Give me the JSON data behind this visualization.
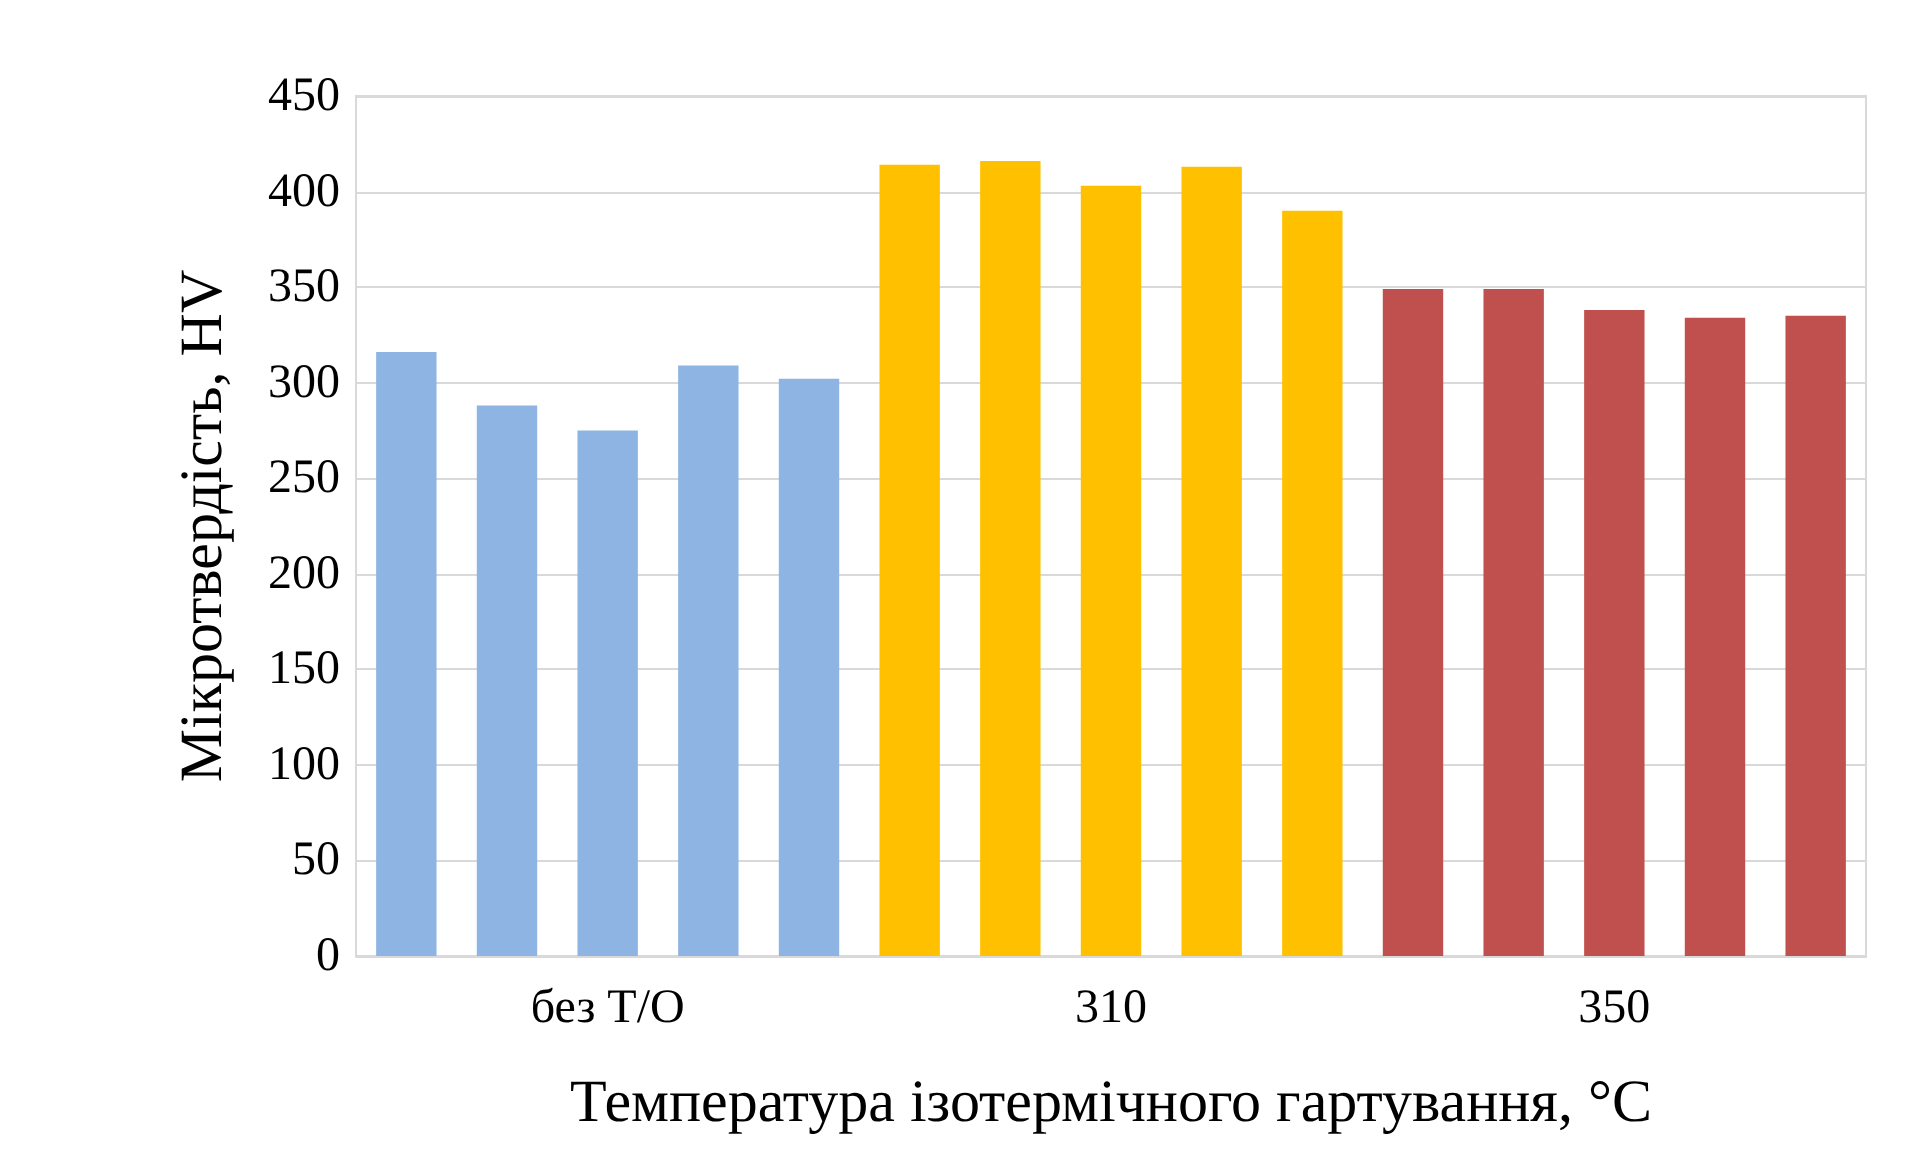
{
  "chart_data": {
    "type": "bar",
    "xlabel": "Температура ізотермічного гартування, °C",
    "ylabel": "Мікротвердість, HV",
    "categories": [
      null,
      null,
      "без Т/О",
      null,
      null,
      null,
      null,
      "310",
      null,
      null,
      null,
      null,
      "350",
      null,
      null
    ],
    "values": [
      316,
      288,
      275,
      309,
      302,
      414,
      416,
      403,
      413,
      390,
      349,
      349,
      338,
      334,
      335
    ],
    "colors": [
      "#8eb4e3",
      "#8eb4e3",
      "#8eb4e3",
      "#8eb4e3",
      "#8eb4e3",
      "#ffc000",
      "#ffc000",
      "#ffc000",
      "#ffc000",
      "#ffc000",
      "#c0504d",
      "#c0504d",
      "#c0504d",
      "#c0504d",
      "#c0504d"
    ],
    "ylim": [
      0,
      450
    ],
    "yticks": [
      0,
      50,
      100,
      150,
      200,
      250,
      300,
      350,
      400,
      450
    ],
    "grid": "y"
  }
}
